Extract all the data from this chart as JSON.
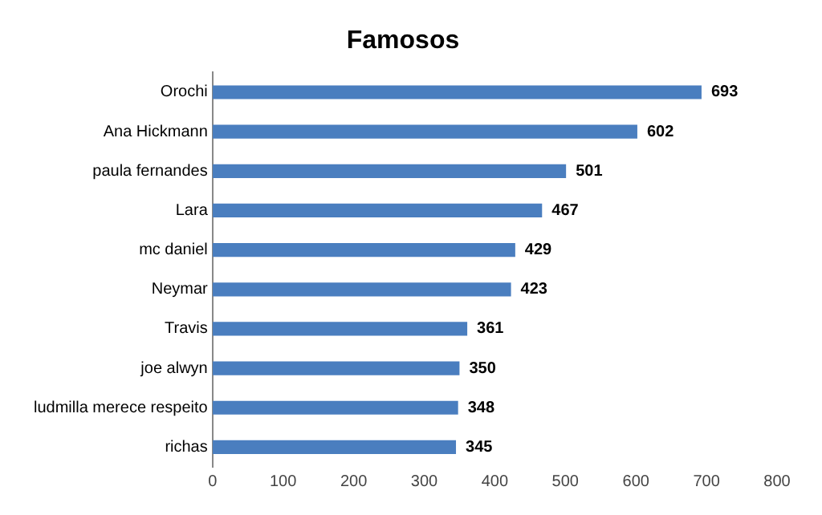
{
  "chart_data": {
    "type": "bar",
    "orientation": "horizontal",
    "title": "Famosos",
    "categories": [
      "Orochi",
      "Ana Hickmann",
      "paula fernandes",
      "Lara",
      "mc daniel",
      "Neymar",
      "Travis",
      "joe alwyn",
      "ludmilla merece respeito",
      "richas"
    ],
    "values": [
      693,
      602,
      501,
      467,
      429,
      423,
      361,
      350,
      348,
      345
    ],
    "color": "#4a7ebf",
    "xlim": [
      0,
      800
    ],
    "xticks": [
      0,
      100,
      200,
      300,
      400,
      500,
      600,
      700,
      800
    ],
    "grid": false,
    "legend": false,
    "data_labels": true
  }
}
